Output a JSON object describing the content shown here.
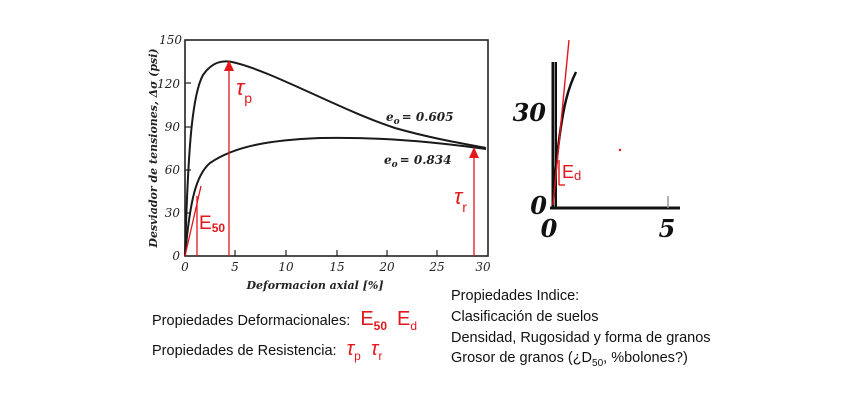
{
  "main_chart": {
    "ylabel": "Desviador de tensiones, Δσ (psi)",
    "xlabel": "Deformacion axial [%]",
    "y_ticks": [
      "0",
      "30",
      "60",
      "90",
      "120",
      "150"
    ],
    "x_ticks": [
      "0",
      "5",
      "10",
      "15",
      "20",
      "25",
      "30"
    ],
    "curve_labels": {
      "upper": "e",
      "upper_sub": "o",
      "upper_value": "= 0.605",
      "lower": "e",
      "lower_sub": "o",
      "lower_value": "= 0.834"
    },
    "annotations": {
      "tau_p": "τ",
      "tau_p_sub": "p",
      "tau_r": "τ",
      "tau_r_sub": "r",
      "e50": "E",
      "e50_sub": "50"
    },
    "annotation_color": "#e3161c"
  },
  "zoom_chart": {
    "y_tick_top": "30",
    "y_tick_zero": "0",
    "x_tick_zero": "0",
    "x_tick_five": "5",
    "ed_label": "E",
    "ed_sub": "d"
  },
  "legend": {
    "deformational": "Propiedades Deformacionales:",
    "deformational_symbols": {
      "e": "E",
      "e50_sub": "50",
      "ed_sub": "d"
    },
    "resistance": "Propiedades de Resistencia:",
    "resistance_symbols": {
      "tau": "τ",
      "p_sub": "p",
      "r_sub": "r"
    }
  },
  "index_properties": {
    "title": "Propiedades Indice:",
    "item1": "Clasificación de suelos",
    "item2": "Densidad, Rugosidad y forma de granos",
    "item3_pre": "Grosor de granos (¿D",
    "item3_sub": "50",
    "item3_post": ", %bolones?)"
  }
}
